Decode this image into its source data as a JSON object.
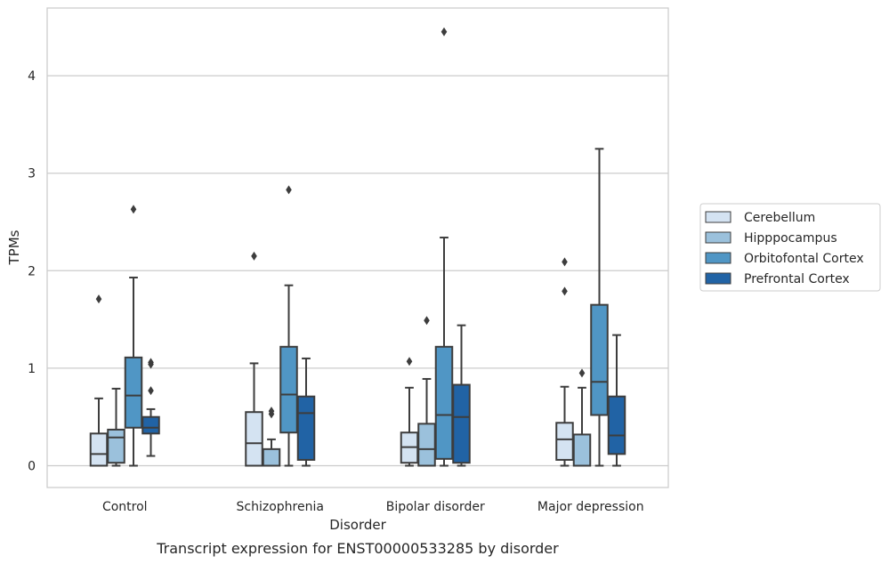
{
  "chart_data": {
    "type": "boxplot",
    "title": "",
    "caption": "Transcript expression for ENST00000533285 by disorder",
    "xlabel": "Disorder",
    "ylabel": "TPMs",
    "ylim": [
      -0.22,
      4.7
    ],
    "yticks": [
      0,
      1,
      2,
      3,
      4
    ],
    "grid": "horizontal",
    "legend_position": "right",
    "categories": [
      "Control",
      "Schizophrenia",
      "Bipolar disorder",
      "Major depression"
    ],
    "series": [
      {
        "name": "Cerebellum",
        "color": "#d4e3f2",
        "boxes": [
          {
            "whislo": 0.0,
            "q1": 0.0,
            "med": 0.12,
            "q3": 0.33,
            "whishi": 0.69,
            "fliers": [
              1.71
            ]
          },
          {
            "whislo": 0.0,
            "q1": 0.0,
            "med": 0.23,
            "q3": 0.55,
            "whishi": 1.05,
            "fliers": [
              2.15
            ]
          },
          {
            "whislo": 0.0,
            "q1": 0.03,
            "med": 0.19,
            "q3": 0.34,
            "whishi": 0.8,
            "fliers": [
              1.07
            ]
          },
          {
            "whislo": 0.0,
            "q1": 0.06,
            "med": 0.27,
            "q3": 0.44,
            "whishi": 0.81,
            "fliers": [
              1.79,
              2.09
            ]
          }
        ]
      },
      {
        "name": "Hipppocampus",
        "color": "#9bc1dc",
        "boxes": [
          {
            "whislo": 0.0,
            "q1": 0.03,
            "med": 0.29,
            "q3": 0.37,
            "whishi": 0.79,
            "fliers": []
          },
          {
            "whislo": 0.0,
            "q1": 0.0,
            "med": 0.0,
            "q3": 0.17,
            "whishi": 0.27,
            "fliers": [
              0.53,
              0.56
            ]
          },
          {
            "whislo": 0.0,
            "q1": 0.0,
            "med": 0.17,
            "q3": 0.43,
            "whishi": 0.89,
            "fliers": [
              1.49
            ]
          },
          {
            "whislo": 0.0,
            "q1": 0.0,
            "med": 0.0,
            "q3": 0.32,
            "whishi": 0.8,
            "fliers": [
              0.95
            ]
          }
        ]
      },
      {
        "name": "Orbitofontal Cortex",
        "color": "#5096c5",
        "boxes": [
          {
            "whislo": 0.0,
            "q1": 0.39,
            "med": 0.72,
            "q3": 1.11,
            "whishi": 1.93,
            "fliers": [
              2.63
            ]
          },
          {
            "whislo": 0.0,
            "q1": 0.34,
            "med": 0.73,
            "q3": 1.22,
            "whishi": 1.85,
            "fliers": [
              2.83
            ]
          },
          {
            "whislo": 0.0,
            "q1": 0.07,
            "med": 0.52,
            "q3": 1.22,
            "whishi": 2.34,
            "fliers": [
              4.45
            ]
          },
          {
            "whislo": 0.0,
            "q1": 0.52,
            "med": 0.86,
            "q3": 1.65,
            "whishi": 3.25,
            "fliers": []
          }
        ]
      },
      {
        "name": "Prefrontal Cortex",
        "color": "#2163a5",
        "boxes": [
          {
            "whislo": 0.1,
            "q1": 0.33,
            "med": 0.39,
            "q3": 0.5,
            "whishi": 0.58,
            "fliers": [
              0.77,
              1.04,
              1.06
            ]
          },
          {
            "whislo": 0.0,
            "q1": 0.06,
            "med": 0.54,
            "q3": 0.71,
            "whishi": 1.1,
            "fliers": []
          },
          {
            "whislo": 0.0,
            "q1": 0.03,
            "med": 0.5,
            "q3": 0.83,
            "whishi": 1.44,
            "fliers": []
          },
          {
            "whislo": 0.0,
            "q1": 0.12,
            "med": 0.31,
            "q3": 0.71,
            "whishi": 1.34,
            "fliers": []
          }
        ]
      }
    ]
  }
}
